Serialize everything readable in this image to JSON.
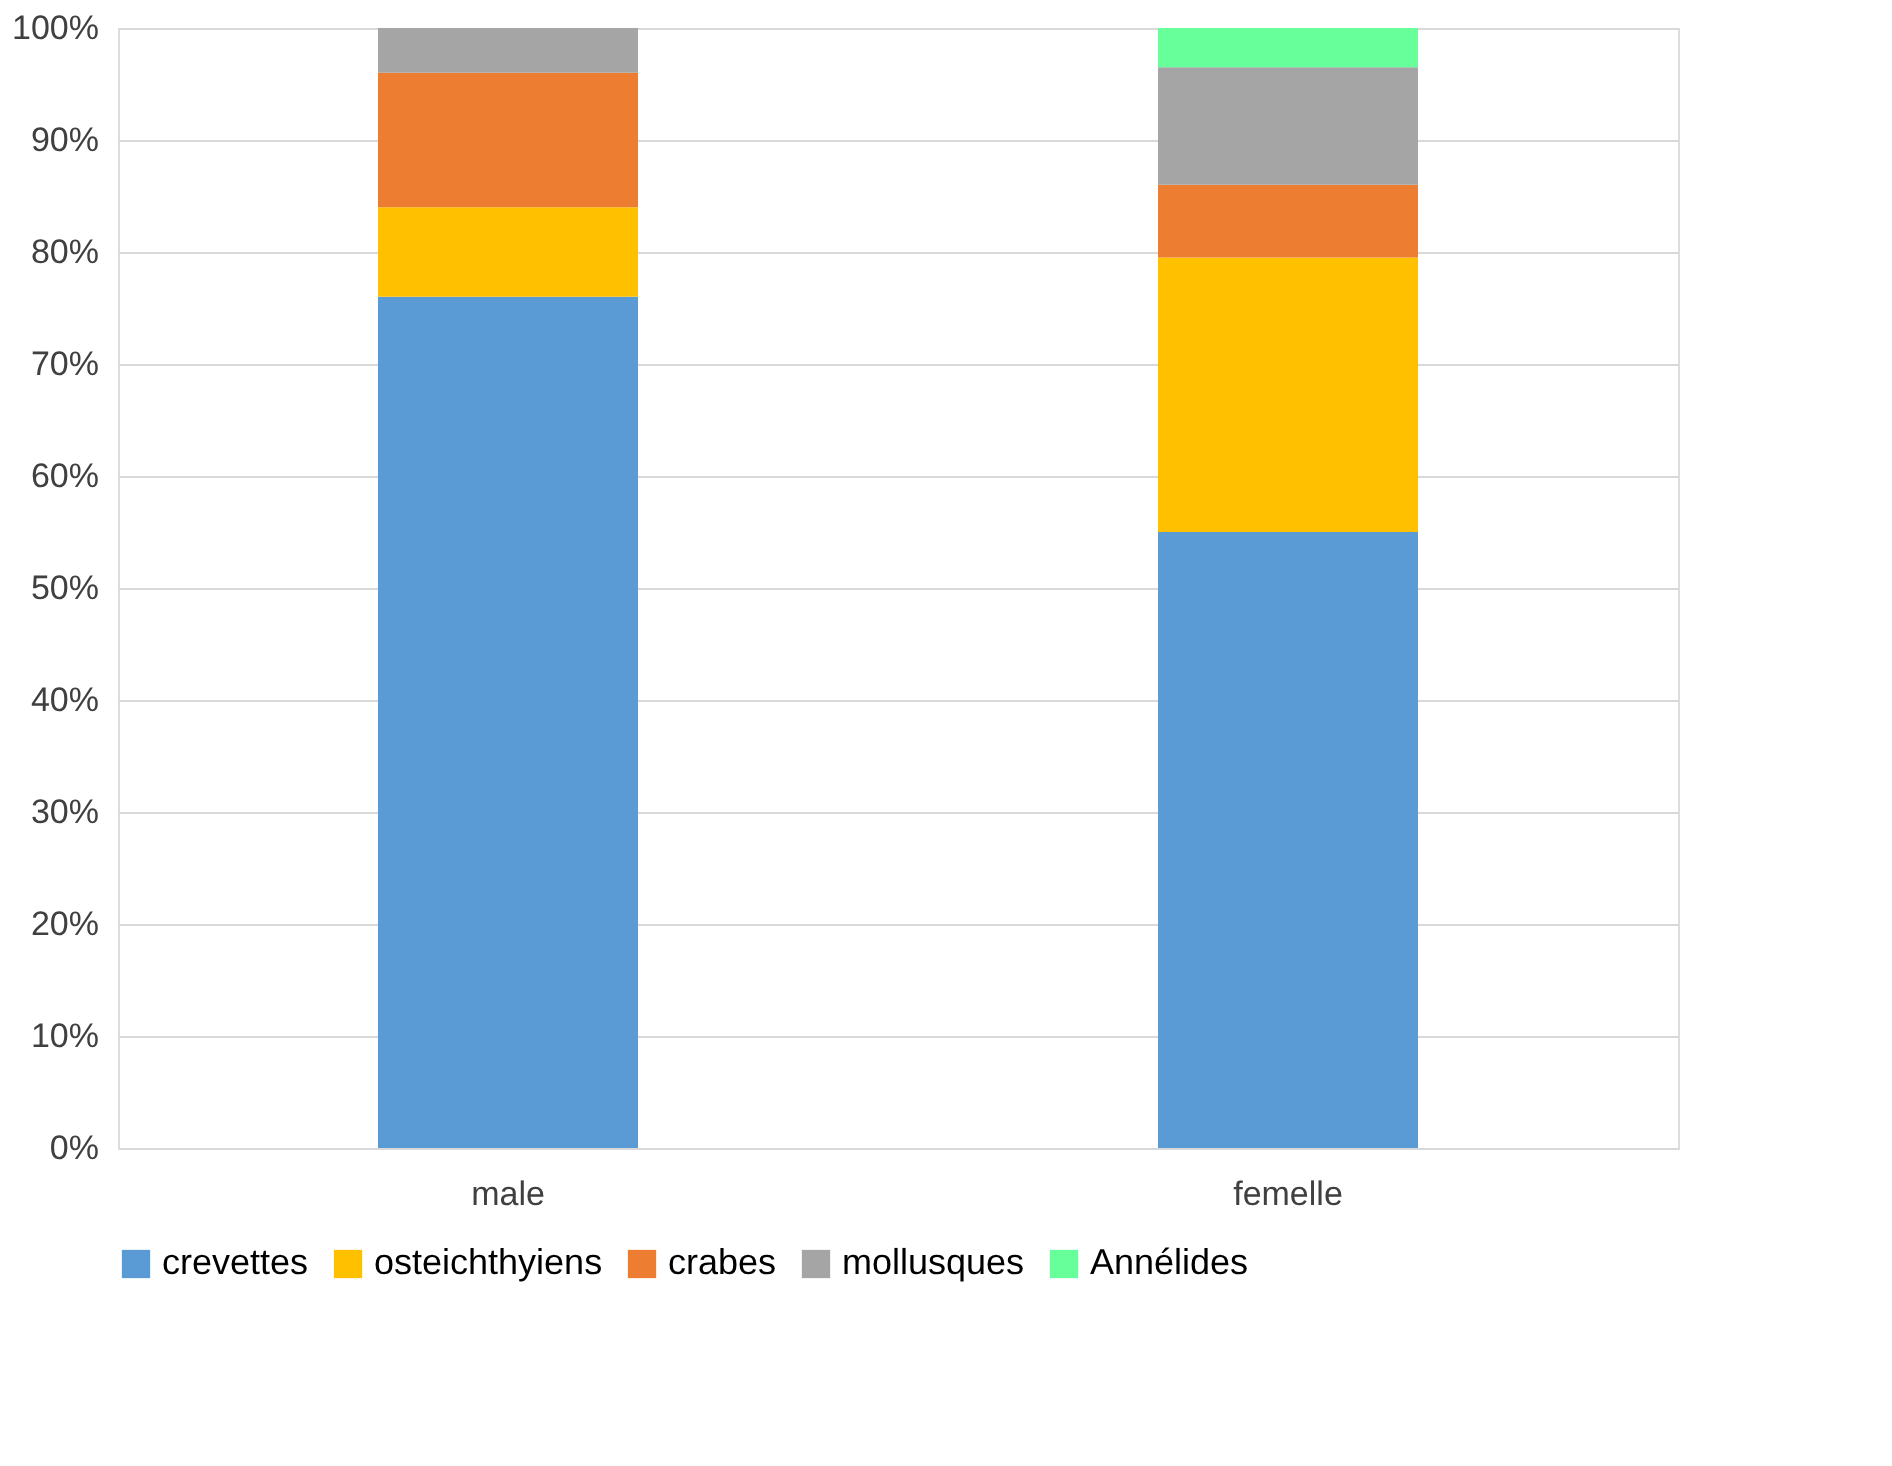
{
  "chart_data": {
    "type": "bar",
    "stacked": true,
    "categories": [
      "male",
      "femelle"
    ],
    "series": [
      {
        "name": "crevettes",
        "color": "#5b9bd5",
        "values": [
          76,
          55
        ]
      },
      {
        "name": "osteichthyiens",
        "color": "#ffc000",
        "values": [
          8,
          24.5
        ]
      },
      {
        "name": "crabes",
        "color": "#ed7d31",
        "values": [
          12,
          6.5
        ]
      },
      {
        "name": "mollusques",
        "color": "#a5a5a5",
        "values": [
          4,
          10.5
        ]
      },
      {
        "name": "Annélides",
        "color": "#66ff99",
        "values": [
          0,
          3.5
        ]
      }
    ],
    "ylim": [
      0,
      100
    ],
    "yticks": [
      {
        "value": 0,
        "label": "0%"
      },
      {
        "value": 10,
        "label": "10%"
      },
      {
        "value": 20,
        "label": "20%"
      },
      {
        "value": 30,
        "label": "30%"
      },
      {
        "value": 40,
        "label": "40%"
      },
      {
        "value": 50,
        "label": "50%"
      },
      {
        "value": 60,
        "label": "60%"
      },
      {
        "value": 70,
        "label": "70%"
      },
      {
        "value": 80,
        "label": "80%"
      },
      {
        "value": 90,
        "label": "90%"
      },
      {
        "value": 100,
        "label": "100%"
      }
    ],
    "grid": "y",
    "legend": "bottom"
  }
}
